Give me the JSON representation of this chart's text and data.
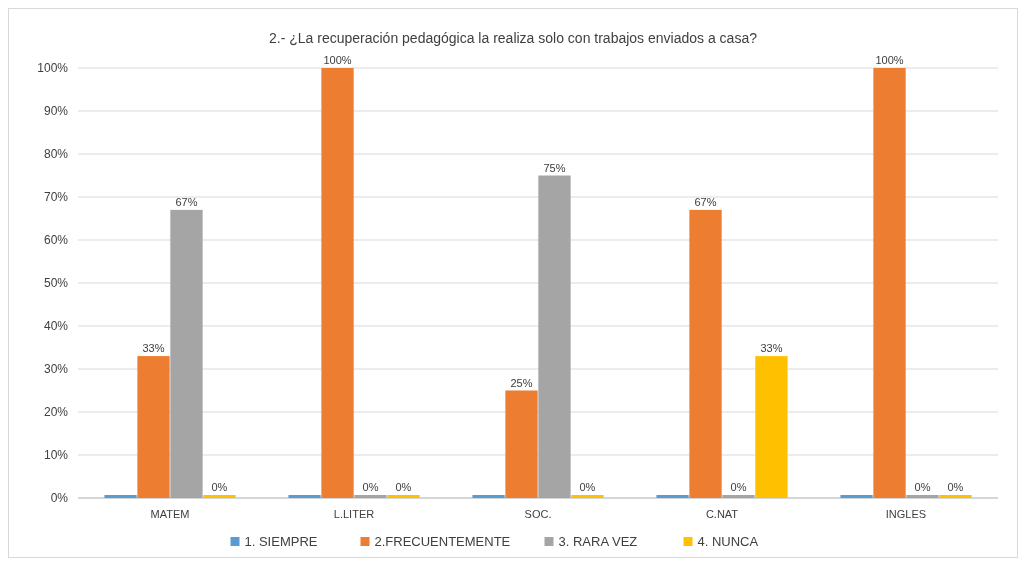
{
  "chart_data": {
    "type": "bar",
    "title": "2.- ¿La recuperación pedagógica la realiza solo con trabajos enviados a casa?",
    "categories": [
      "MATEM",
      "L.LITER",
      "SOC.",
      "C.NAT",
      "INGLES"
    ],
    "series": [
      {
        "name": "1. SIEMPRE",
        "color": "#5b9bd5",
        "values": [
          0,
          0,
          0,
          0,
          0
        ],
        "value_labels": [
          null,
          null,
          null,
          null,
          null
        ]
      },
      {
        "name": "2.FRECUENTEMENTE",
        "color": "#ed7d31",
        "values": [
          33,
          100,
          25,
          67,
          100
        ],
        "value_labels": [
          "33%",
          "100%",
          "25%",
          "67%",
          "100%"
        ]
      },
      {
        "name": "3. RARA VEZ",
        "color": "#a5a5a5",
        "values": [
          67,
          0,
          75,
          0,
          0
        ],
        "value_labels": [
          "67%",
          "0%",
          "75%",
          "0%",
          "0%"
        ]
      },
      {
        "name": "4. NUNCA",
        "color": "#ffc000",
        "values": [
          0,
          0,
          0,
          33,
          0
        ],
        "value_labels": [
          "0%",
          "0%",
          "0%",
          "33%",
          "0%"
        ]
      }
    ],
    "ylim": [
      0,
      100
    ],
    "yticks": [
      {
        "value": 0,
        "label": "0%"
      },
      {
        "value": 10,
        "label": "10%"
      },
      {
        "value": 20,
        "label": "20%"
      },
      {
        "value": 30,
        "label": "30%"
      },
      {
        "value": 40,
        "label": "40%"
      },
      {
        "value": 50,
        "label": "50%"
      },
      {
        "value": 60,
        "label": "60%"
      },
      {
        "value": 70,
        "label": "70%"
      },
      {
        "value": 80,
        "label": "80%"
      },
      {
        "value": 90,
        "label": "90%"
      },
      {
        "value": 100,
        "label": "100%"
      }
    ],
    "grid": "y",
    "legend": "bottom"
  }
}
